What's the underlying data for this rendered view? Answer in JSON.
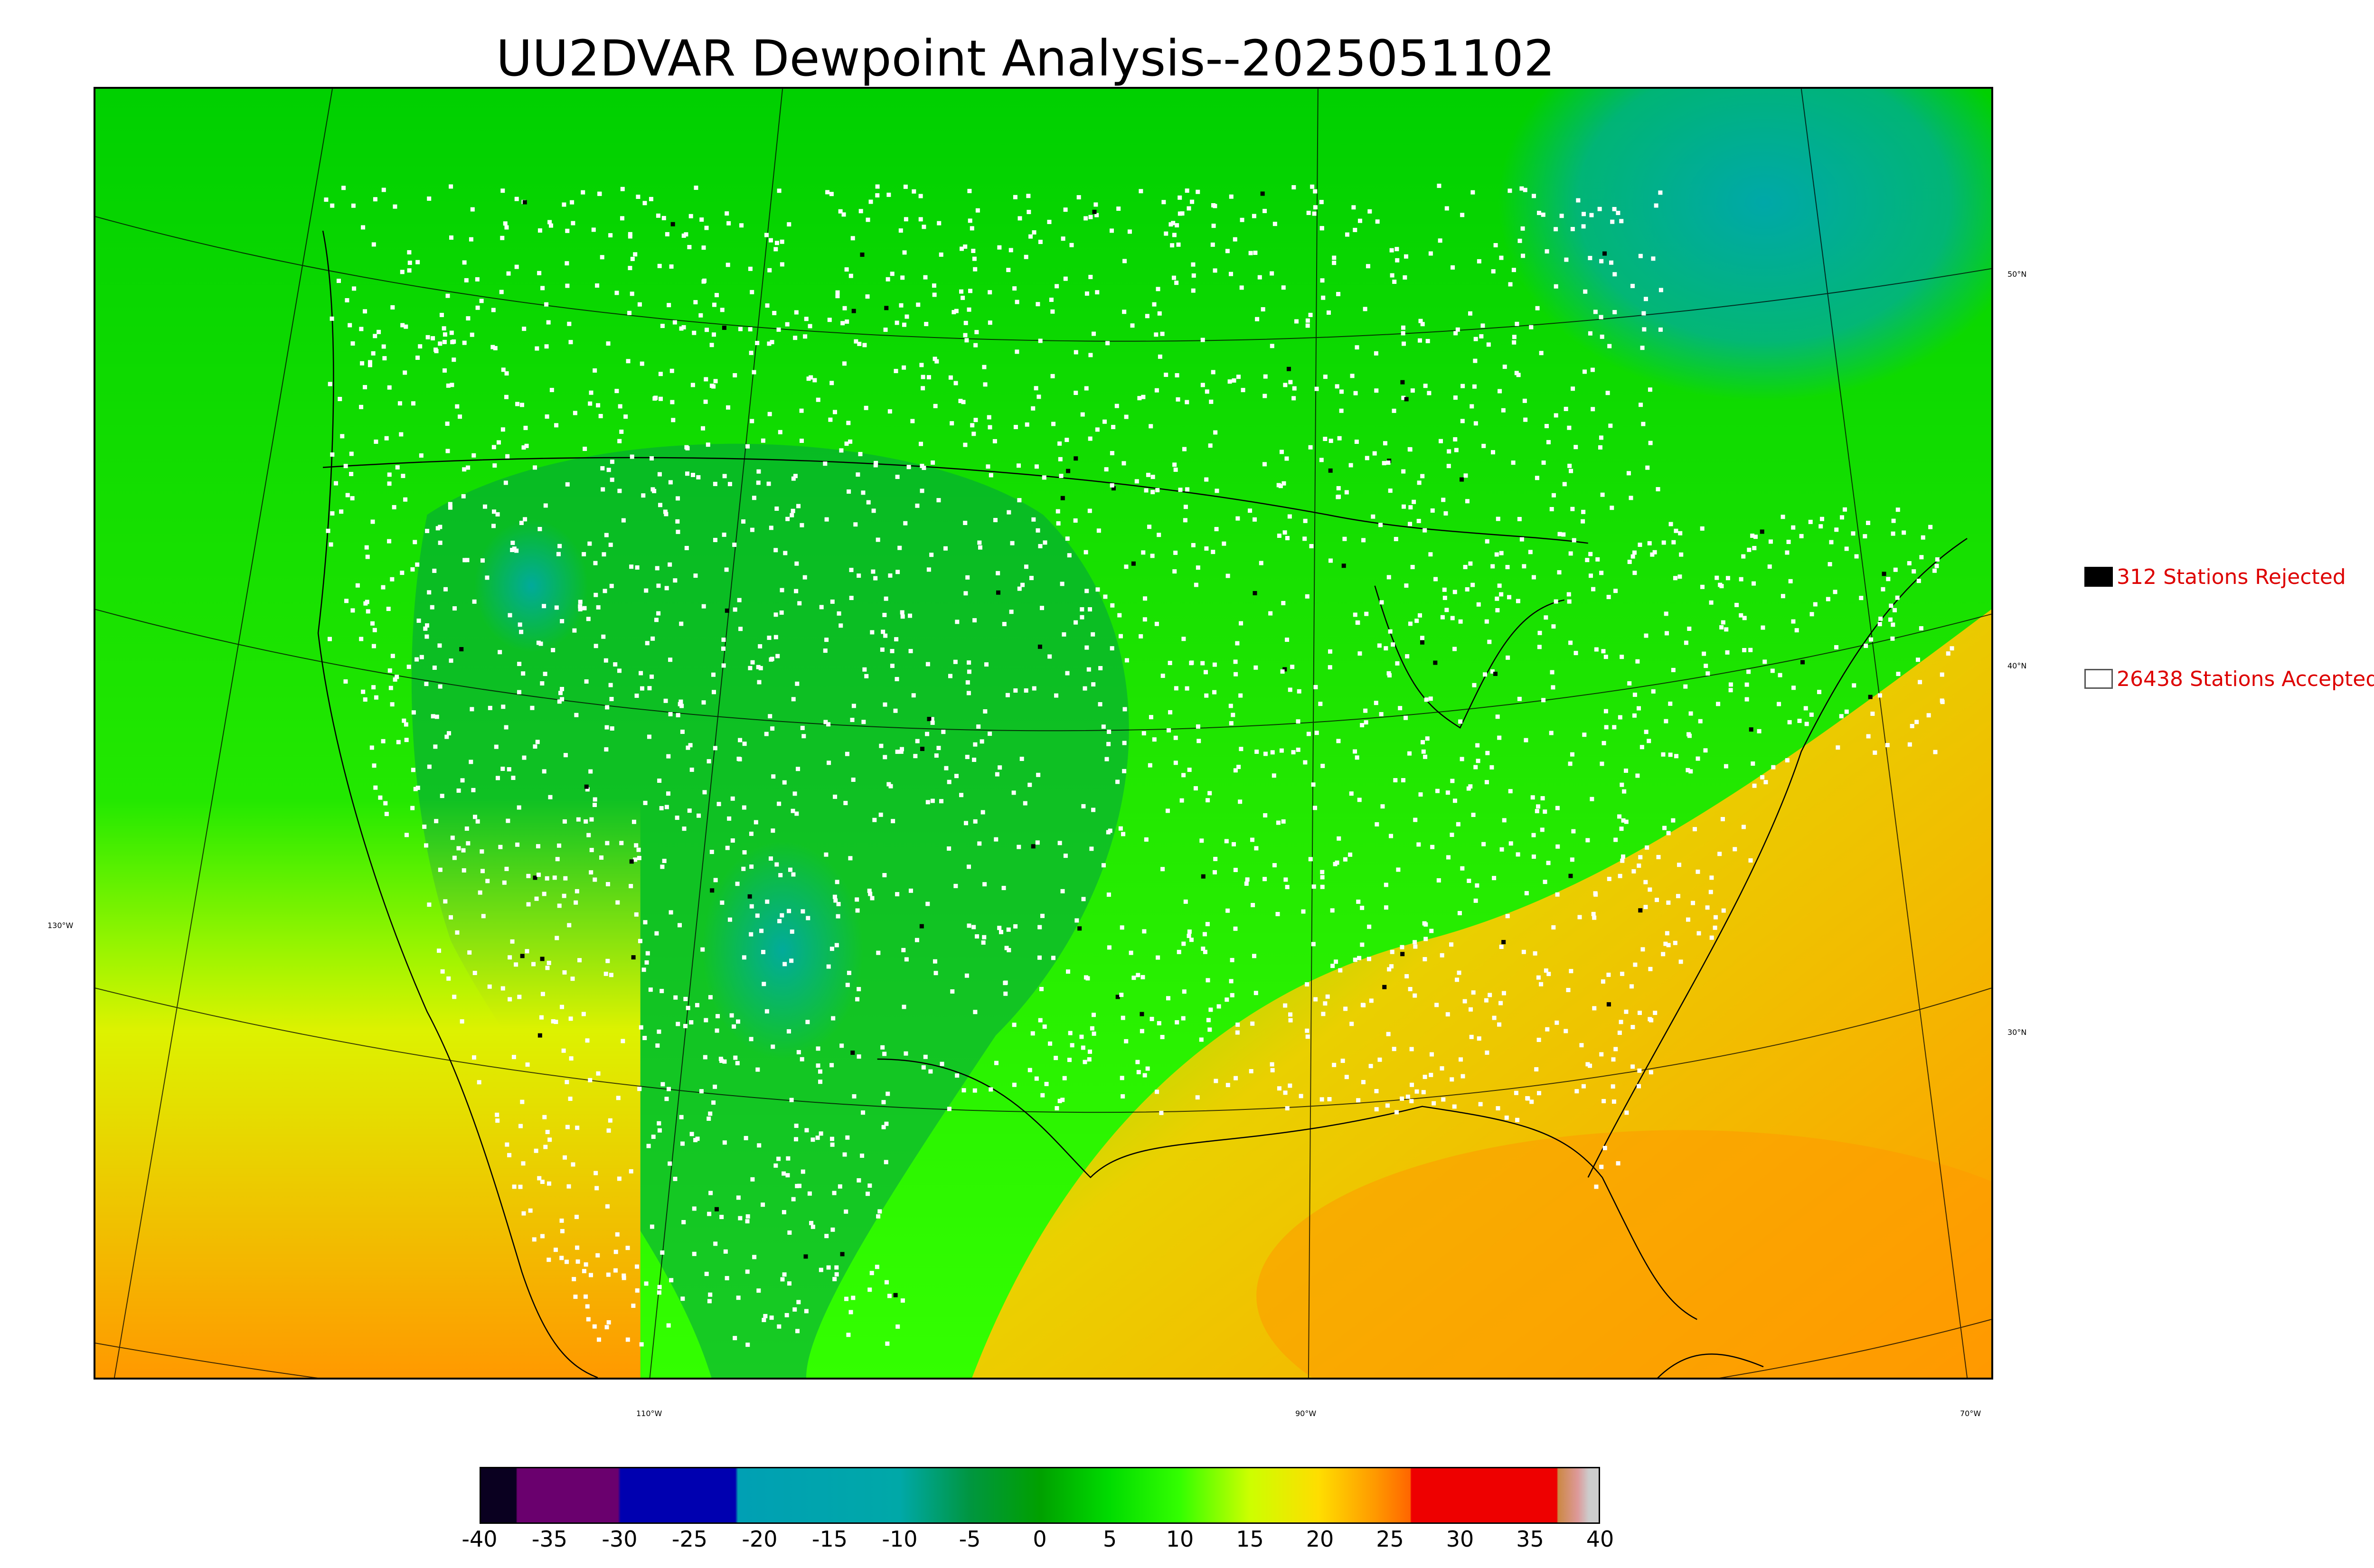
{
  "title": "UU2DVAR Dewpoint Analysis--2025051102",
  "legend": {
    "rejected": {
      "label": "312 Stations Rejected",
      "color": "#000000"
    },
    "accepted": {
      "label": "26438 Stations Accepted",
      "color": "#ffffff"
    }
  },
  "graticule": {
    "lat_labels": [
      "50°N",
      "40°N",
      "30°N"
    ],
    "lon_labels": [
      "130°W",
      "110°W",
      "90°W",
      "70°W"
    ]
  },
  "colorbar": {
    "ticks": [
      "-40",
      "-35",
      "-30",
      "-25",
      "-20",
      "-15",
      "-10",
      "-5",
      "0",
      "5",
      "10",
      "15",
      "20",
      "25",
      "30",
      "35",
      "40"
    ],
    "range": [
      -40,
      40
    ],
    "stops": [
      {
        "v": -40,
        "c": "#0a0020"
      },
      {
        "v": -37.5,
        "c": "#0a0020"
      },
      {
        "v": -37.4,
        "c": "#6a006e"
      },
      {
        "v": -30.2,
        "c": "#6a006e"
      },
      {
        "v": -30,
        "c": "#0000b0"
      },
      {
        "v": -21.8,
        "c": "#0000b0"
      },
      {
        "v": -21.6,
        "c": "#00a0b4"
      },
      {
        "v": -10,
        "c": "#00a8a8"
      },
      {
        "v": -5,
        "c": "#009640"
      },
      {
        "v": 0,
        "c": "#00a000"
      },
      {
        "v": 5,
        "c": "#00dc00"
      },
      {
        "v": 10,
        "c": "#33ff00"
      },
      {
        "v": 15,
        "c": "#ccff00"
      },
      {
        "v": 20,
        "c": "#ffdd00"
      },
      {
        "v": 24,
        "c": "#ff9900"
      },
      {
        "v": 26.5,
        "c": "#ff6600"
      },
      {
        "v": 26.6,
        "c": "#ee0000"
      },
      {
        "v": 37,
        "c": "#ee0000"
      },
      {
        "v": 37.1,
        "c": "#cc8844"
      },
      {
        "v": 38.5,
        "c": "#dd9999"
      },
      {
        "v": 39.3,
        "c": "#cccccc"
      },
      {
        "v": 40,
        "c": "#cccccc"
      }
    ]
  },
  "colors": {
    "cold": "#00a8a8",
    "cool": "#009a3a",
    "mid": "#00d000",
    "bright": "#33ff00",
    "yellow_green": "#ccff00",
    "yellow": "#ffe000",
    "orange": "#ff9900",
    "station_accepted": "#ffffff",
    "station_rejected": "#000000"
  }
}
